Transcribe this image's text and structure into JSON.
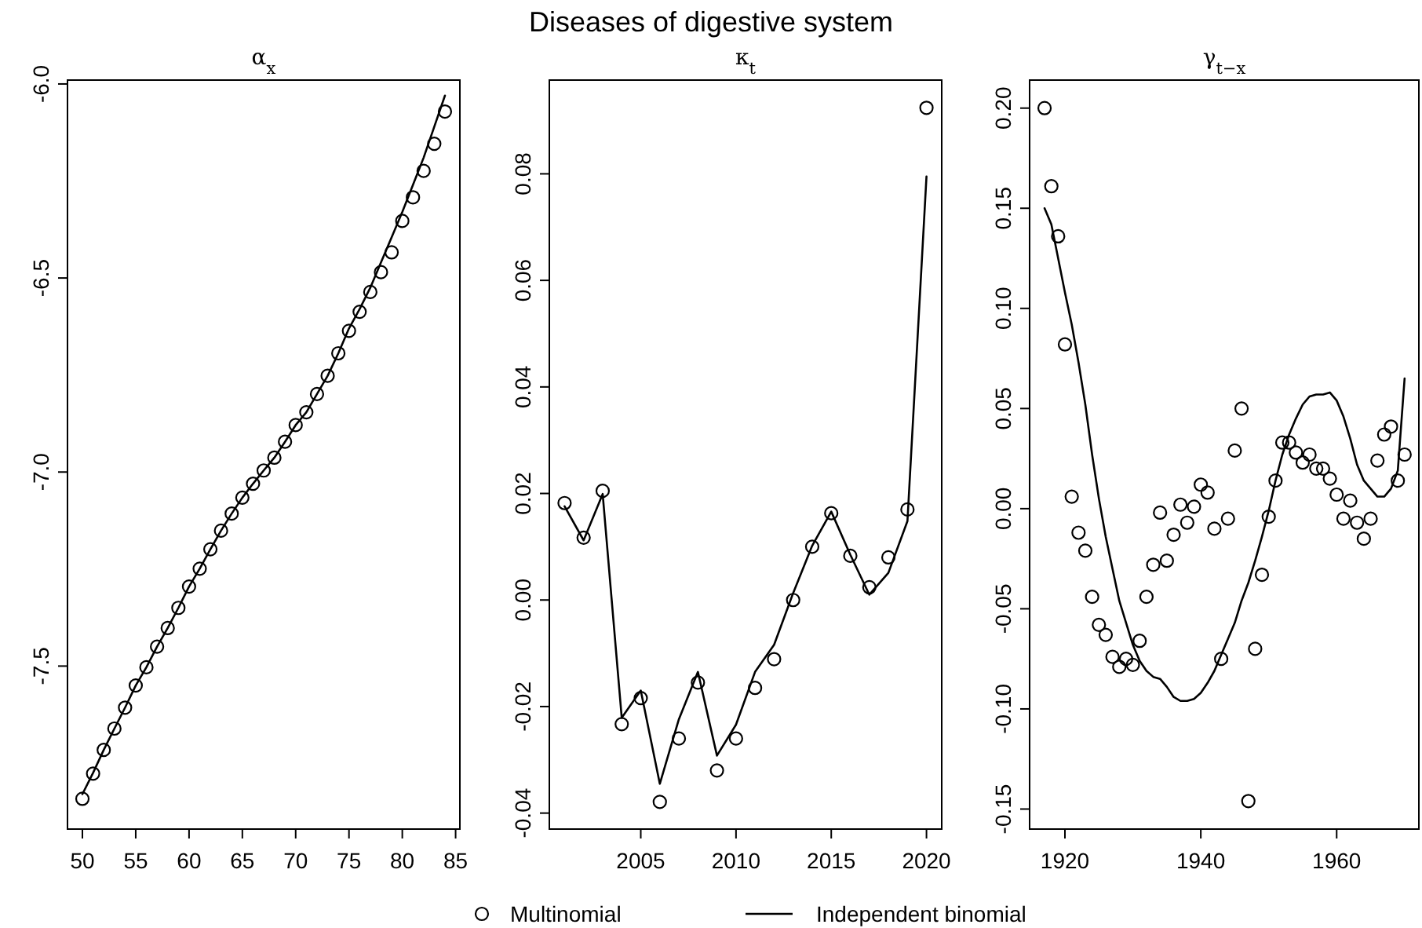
{
  "chart_data": [
    {
      "type": "line",
      "title": "α$_{x}$",
      "x": [
        50,
        51,
        52,
        53,
        54,
        55,
        56,
        57,
        58,
        59,
        60,
        61,
        62,
        63,
        64,
        65,
        66,
        67,
        68,
        69,
        70,
        71,
        72,
        73,
        74,
        75,
        76,
        77,
        78,
        79,
        80,
        81,
        82,
        83,
        84
      ],
      "xlim": [
        48.6,
        85.4
      ],
      "xticks": [
        50,
        55,
        60,
        65,
        70,
        75,
        80,
        85
      ],
      "ylim": [
        -7.92,
        -5.99
      ],
      "yticks": [
        {
          "value": -7.5,
          "label": "-7.5"
        },
        {
          "value": -7,
          "label": "-7.0"
        },
        {
          "value": -6.5,
          "label": "-6.5"
        },
        {
          "value": -6,
          "label": "-6.0"
        }
      ],
      "grid": false,
      "series": [
        {
          "type": "scatter",
          "marker": "circle",
          "color": "#000000",
          "values": [
            -7.842,
            -7.777,
            -7.716,
            -7.661,
            -7.607,
            -7.55,
            -7.503,
            -7.45,
            -7.402,
            -7.35,
            -7.295,
            -7.249,
            -7.199,
            -7.151,
            -7.107,
            -7.066,
            -7.03,
            -6.996,
            -6.963,
            -6.922,
            -6.879,
            -6.846,
            -6.799,
            -6.752,
            -6.694,
            -6.636,
            -6.587,
            -6.536,
            -6.485,
            -6.434,
            -6.353,
            -6.292,
            -6.224,
            -6.154,
            -6.071
          ]
        },
        {
          "line_style": "solid",
          "color": "#000000",
          "values": [
            -7.83,
            -7.775,
            -7.716,
            -7.661,
            -7.607,
            -7.55,
            -7.503,
            -7.45,
            -7.402,
            -7.35,
            -7.295,
            -7.249,
            -7.199,
            -7.151,
            -7.107,
            -7.066,
            -7.03,
            -6.996,
            -6.963,
            -6.922,
            -6.879,
            -6.846,
            -6.799,
            -6.752,
            -6.694,
            -6.63,
            -6.58,
            -6.525,
            -6.46,
            -6.395,
            -6.33,
            -6.26,
            -6.19,
            -6.11,
            -6.03
          ]
        }
      ]
    },
    {
      "type": "line",
      "title": "Diseases of digestive system",
      "subtitle": "κ$_{t}$",
      "x": [
        2001,
        2002,
        2003,
        2004,
        2005,
        2006,
        2007,
        2008,
        2009,
        2010,
        2011,
        2012,
        2013,
        2014,
        2015,
        2016,
        2017,
        2018,
        2019,
        2020
      ],
      "xlim": [
        2000.2,
        2020.8
      ],
      "xticks": [
        2005,
        2010,
        2015,
        2020
      ],
      "ylim": [
        -0.043,
        0.0976
      ],
      "yticks": [
        {
          "value": -0.04,
          "label": "-0.04"
        },
        {
          "value": -0.02,
          "label": "-0.02"
        },
        {
          "value": 0,
          "label": "0.00"
        },
        {
          "value": 0.02,
          "label": "0.02"
        },
        {
          "value": 0.04,
          "label": "0.04"
        },
        {
          "value": 0.06,
          "label": "0.06"
        },
        {
          "value": 0.08,
          "label": "0.08"
        }
      ],
      "grid": false,
      "legend": "bottom",
      "series": [
        {
          "type": "scatter",
          "name": "Multinomial",
          "marker": "circle",
          "color": "#000000",
          "values": [
            0.0182,
            0.0117,
            0.0205,
            -0.0233,
            -0.0184,
            -0.0379,
            -0.026,
            -0.0155,
            -0.032,
            -0.026,
            -0.0165,
            -0.0111,
            0.0,
            0.01,
            0.0163,
            0.0083,
            0.0024,
            0.008,
            0.017,
            0.0924
          ]
        },
        {
          "name": "Independent binomial",
          "line_style": "solid",
          "color": "#000000",
          "values": [
            0.0176,
            0.0112,
            0.0199,
            -0.0221,
            -0.017,
            -0.0345,
            -0.0224,
            -0.0135,
            -0.0292,
            -0.0234,
            -0.0135,
            -0.0084,
            0.0013,
            0.0102,
            0.0166,
            0.0085,
            0.001,
            0.0051,
            0.0148,
            0.0795
          ]
        }
      ]
    },
    {
      "type": "line",
      "title": "γ$_{t−x}$",
      "x": [
        1917,
        1918,
        1919,
        1920,
        1921,
        1922,
        1923,
        1924,
        1925,
        1926,
        1927,
        1928,
        1929,
        1930,
        1931,
        1932,
        1933,
        1934,
        1935,
        1936,
        1937,
        1938,
        1939,
        1940,
        1941,
        1942,
        1943,
        1944,
        1945,
        1946,
        1947,
        1948,
        1949,
        1950,
        1951,
        1952,
        1953,
        1954,
        1955,
        1956,
        1957,
        1958,
        1959,
        1960,
        1961,
        1962,
        1963,
        1964,
        1965,
        1966,
        1967,
        1968,
        1969,
        1970
      ],
      "xlim": [
        1914.8,
        1972.1
      ],
      "xticks": [
        1920,
        1940,
        1960
      ],
      "ylim": [
        -0.16,
        0.214
      ],
      "yticks": [
        {
          "value": -0.15,
          "label": "-0.15"
        },
        {
          "value": -0.1,
          "label": "-0.10"
        },
        {
          "value": -0.05,
          "label": "-0.05"
        },
        {
          "value": 0,
          "label": "0.00"
        },
        {
          "value": 0.05,
          "label": "0.05"
        },
        {
          "value": 0.1,
          "label": "0.10"
        },
        {
          "value": 0.15,
          "label": "0.15"
        },
        {
          "value": 0.2,
          "label": "0.20"
        }
      ],
      "grid": false,
      "series": [
        {
          "type": "scatter",
          "marker": "circle",
          "color": "#000000",
          "values": [
            0.2,
            0.161,
            0.136,
            0.082,
            0.006,
            -0.012,
            -0.021,
            -0.044,
            -0.058,
            -0.063,
            -0.074,
            -0.079,
            -0.075,
            -0.078,
            -0.066,
            -0.044,
            -0.028,
            -0.002,
            -0.026,
            -0.013,
            0.002,
            -0.007,
            0.001,
            0.012,
            0.008,
            -0.01,
            -0.075,
            -0.005,
            0.029,
            0.05,
            -0.146,
            -0.07,
            -0.033,
            -0.004,
            0.014,
            0.033,
            0.033,
            0.028,
            0.023,
            0.027,
            0.02,
            0.02,
            0.015,
            0.007,
            -0.005,
            0.004,
            -0.007,
            -0.015,
            -0.005,
            0.024,
            0.037,
            0.041,
            0.014,
            0.027
          ]
        },
        {
          "line_style": "solid",
          "color": "#000000",
          "values": [
            0.15,
            0.142,
            0.125,
            0.108,
            0.092,
            0.073,
            0.052,
            0.027,
            0.005,
            -0.014,
            -0.03,
            -0.046,
            -0.057,
            -0.068,
            -0.076,
            -0.081,
            -0.084,
            -0.085,
            -0.089,
            -0.094,
            -0.096,
            -0.096,
            -0.095,
            -0.092,
            -0.087,
            -0.081,
            -0.073,
            -0.065,
            -0.057,
            -0.046,
            -0.037,
            -0.026,
            -0.014,
            -0.001,
            0.014,
            0.027,
            0.037,
            0.045,
            0.052,
            0.056,
            0.057,
            0.057,
            0.058,
            0.054,
            0.046,
            0.035,
            0.022,
            0.014,
            0.01,
            0.006,
            0.006,
            0.01,
            0.019,
            0.065
          ]
        }
      ]
    }
  ]
}
